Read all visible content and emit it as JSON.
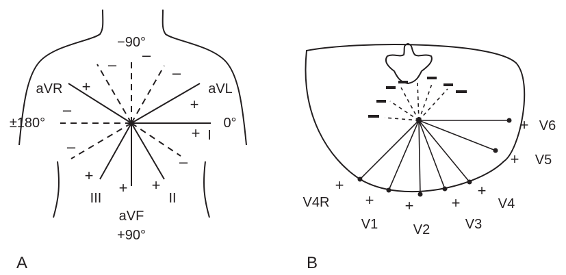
{
  "panel_a": {
    "panel_label": "A",
    "angles": {
      "minus_90": "−90°",
      "plus_minus_180": "±180°",
      "zero": "0°",
      "plus_90": "+90°"
    },
    "leads": {
      "avr": "aVR",
      "avl": "aVL",
      "i": "I",
      "ii": "II",
      "iii": "III",
      "avf": "aVF"
    },
    "plus": "+",
    "minus": "–"
  },
  "panel_b": {
    "panel_label": "B",
    "leads": {
      "v1": "V1",
      "v2": "V2",
      "v3": "V3",
      "v4": "V4",
      "v5": "V5",
      "v6": "V6",
      "v4r": "V4R"
    },
    "plus": "+"
  }
}
